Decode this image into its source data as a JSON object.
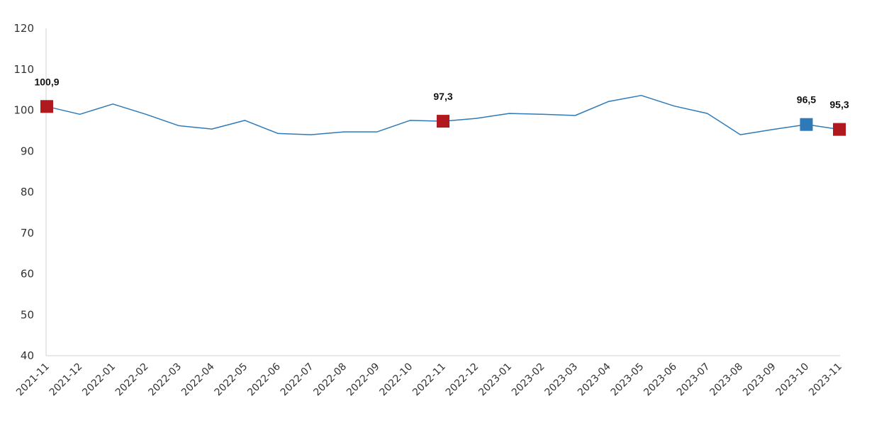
{
  "chart_data": {
    "type": "line",
    "title": "",
    "xlabel": "",
    "ylabel": "",
    "ylim": [
      40,
      120
    ],
    "yticks": [
      40,
      50,
      60,
      70,
      80,
      90,
      100,
      110,
      120
    ],
    "grid": false,
    "legend": "none",
    "categories": [
      "2021-11",
      "2021-12",
      "2022-01",
      "2022-02",
      "2022-03",
      "2022-04",
      "2022-05",
      "2022-06",
      "2022-07",
      "2022-08",
      "2022-09",
      "2022-10",
      "2022-11",
      "2022-12",
      "2023-01",
      "2023-02",
      "2023-03",
      "2023-04",
      "2023-05",
      "2023-06",
      "2023-07",
      "2023-08",
      "2023-09",
      "2023-10",
      "2023-11"
    ],
    "series": [
      {
        "values": [
          100.9,
          99.0,
          101.5,
          99.0,
          96.2,
          95.4,
          97.5,
          94.3,
          94.0,
          94.7,
          94.7,
          97.5,
          97.3,
          98.0,
          99.2,
          99.0,
          98.7,
          102.1,
          103.6,
          101.0,
          99.2,
          94.0,
          95.3,
          96.5,
          95.3
        ],
        "color": "#2e7ab8"
      }
    ],
    "highlights": [
      {
        "category": "2021-11",
        "label": "100,9",
        "color": "#b0191e"
      },
      {
        "category": "2022-11",
        "label": "97,3",
        "color": "#b0191e"
      },
      {
        "category": "2023-10",
        "label": "96,5",
        "color": "#2e7ab8"
      },
      {
        "category": "2023-11",
        "label": "95,3",
        "color": "#b0191e"
      }
    ]
  },
  "style": {
    "axis_color": "#d0d0d0",
    "text_color": "#333333"
  }
}
